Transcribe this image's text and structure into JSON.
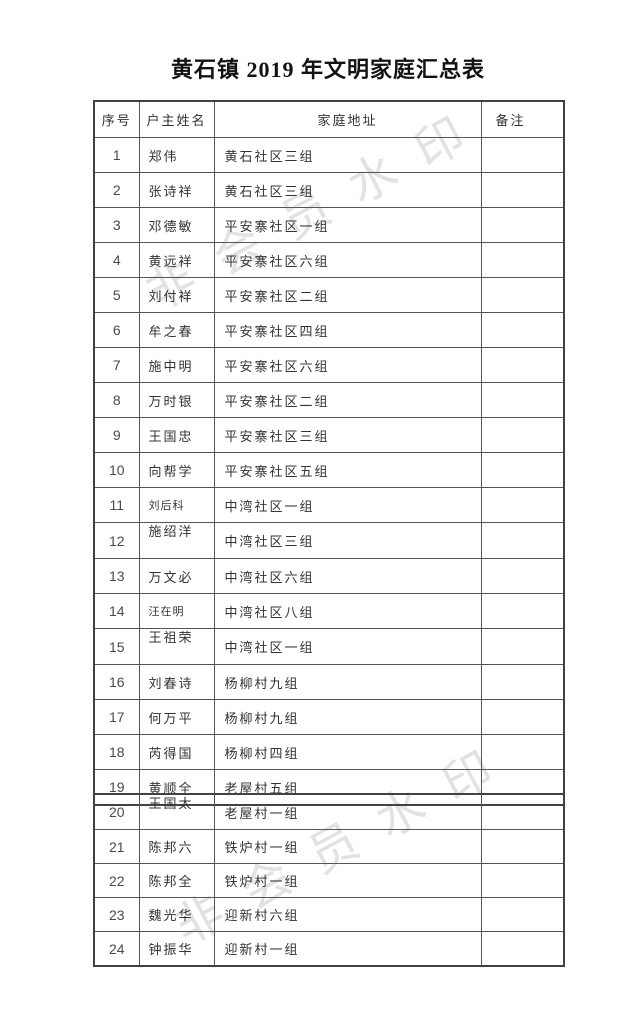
{
  "page": {
    "title": "黄石镇 2019 年文明家庭汇总表"
  },
  "watermark": {
    "text": "非会员水印",
    "color": "#e2e2e2"
  },
  "table": {
    "headers": [
      "序号",
      "户主姓名",
      "家庭地址",
      "备注"
    ],
    "rows": [
      {
        "no": "1",
        "name": "郑伟",
        "address": "黄石社区三组",
        "remark": ""
      },
      {
        "no": "2",
        "name": "张诗祥",
        "address": "黄石社区三组",
        "remark": ""
      },
      {
        "no": "3",
        "name": "邓德敏",
        "address": "平安寨社区一组",
        "remark": ""
      },
      {
        "no": "4",
        "name": "黄远祥",
        "address": "平安寨社区六组",
        "remark": ""
      },
      {
        "no": "5",
        "name": "刘付祥",
        "address": "平安寨社区二组",
        "remark": ""
      },
      {
        "no": "6",
        "name": "牟之春",
        "address": "平安寨社区四组",
        "remark": ""
      },
      {
        "no": "7",
        "name": "施中明",
        "address": "平安寨社区六组",
        "remark": ""
      },
      {
        "no": "8",
        "name": "万时银",
        "address": "平安寨社区二组",
        "remark": ""
      },
      {
        "no": "9",
        "name": "王国忠",
        "address": "平安寨社区三组",
        "remark": ""
      },
      {
        "no": "10",
        "name": "向帮学",
        "address": "平安寨社区五组",
        "remark": ""
      },
      {
        "no": "11",
        "name": "刘后科",
        "address": "中湾社区一组",
        "remark": "",
        "name_style": "small"
      },
      {
        "no": "12",
        "name": "施绍洋",
        "address": "中湾社区三组",
        "remark": "",
        "name_style": "top"
      },
      {
        "no": "13",
        "name": "万文必",
        "address": "中湾社区六组",
        "remark": ""
      },
      {
        "no": "14",
        "name": "汪在明",
        "address": "中湾社区八组",
        "remark": "",
        "name_style": "small"
      },
      {
        "no": "15",
        "name": "王祖荣",
        "address": "中湾社区一组",
        "remark": "",
        "name_style": "top"
      },
      {
        "no": "16",
        "name": "刘春诗",
        "address": "杨柳村九组",
        "remark": ""
      },
      {
        "no": "17",
        "name": "何万平",
        "address": "杨柳村九组",
        "remark": ""
      },
      {
        "no": "18",
        "name": "芮得国",
        "address": "杨柳村四组",
        "remark": ""
      },
      {
        "no": "19",
        "name": "黄顺全",
        "address": "老屋村五组",
        "remark": ""
      }
    ],
    "rows2": [
      {
        "no": "20",
        "name": "王国太",
        "address": "老屋村一组",
        "remark": "",
        "name_style": "top"
      },
      {
        "no": "21",
        "name": "陈邦六",
        "address": "铁炉村一组",
        "remark": ""
      },
      {
        "no": "22",
        "name": "陈邦全",
        "address": "铁炉村一组",
        "remark": ""
      },
      {
        "no": "23",
        "name": "魏光华",
        "address": "迎新村六组",
        "remark": ""
      },
      {
        "no": "24",
        "name": "钟振华",
        "address": "迎新村一组",
        "remark": ""
      }
    ]
  }
}
